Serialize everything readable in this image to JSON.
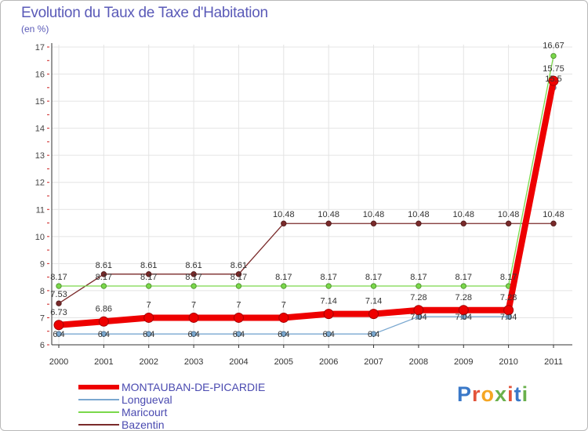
{
  "title": "Evolution du Taux de Taxe d'Habitation",
  "subtitle": "(en %)",
  "logo": {
    "text": "Proxiti",
    "colors": [
      "#3a78c8",
      "#e3533a",
      "#f5a623",
      "#6ab04c",
      "#e3533a",
      "#3a78c8",
      "#6ab04c"
    ]
  },
  "chart_data": {
    "type": "line",
    "title": "Evolution du Taux de Taxe d'Habitation",
    "ylabel": "(en %)",
    "xlabel": "",
    "ylim": [
      6,
      17
    ],
    "yticks": [
      6,
      7,
      8,
      9,
      10,
      11,
      12,
      13,
      14,
      15,
      16,
      17
    ],
    "categories": [
      "2000",
      "2001",
      "2002",
      "2003",
      "2004",
      "2005",
      "2006",
      "2007",
      "2008",
      "2009",
      "2010",
      "2011"
    ],
    "grid": true,
    "series": [
      {
        "name": "Bazentin",
        "color": "#7a2a2a",
        "values": [
          7.53,
          8.61,
          8.61,
          8.61,
          8.61,
          10.48,
          10.48,
          10.48,
          10.48,
          10.48,
          10.48,
          10.48
        ],
        "labels": [
          "7.53",
          "8.61",
          "8.61",
          "8.61",
          "8.61",
          "10.48",
          "10.48",
          "10.48",
          "10.48",
          "10.48",
          "10.48",
          "10.48"
        ]
      },
      {
        "name": "Maricourt",
        "color": "#7ad84a",
        "values": [
          8.17,
          8.17,
          8.17,
          8.17,
          8.17,
          8.17,
          8.17,
          8.17,
          8.17,
          8.17,
          8.17,
          16.67
        ],
        "labels": [
          "8.17",
          "8.17",
          "8.17",
          "8.17",
          "8.17",
          "8.17",
          "8.17",
          "8.17",
          "8.17",
          "8.17",
          "8.17",
          "16.67"
        ]
      },
      {
        "name": "Longueval",
        "color": "#7aa8d0",
        "values": [
          6.4,
          6.4,
          6.4,
          6.4,
          6.4,
          6.4,
          6.4,
          6.4,
          7.04,
          7.04,
          7.04,
          15.5
        ],
        "labels": [
          "6.4",
          "6.4",
          "6.4",
          "6.4",
          "6.4",
          "6.4",
          "6.4",
          "6.4",
          "7.04",
          "7.04",
          "7.04",
          "15.5"
        ]
      },
      {
        "name": "MONTAUBAN-DE-PICARDIE",
        "color": "#ee0000",
        "values": [
          6.73,
          6.86,
          7,
          7,
          7,
          7,
          7.14,
          7.14,
          7.28,
          7.28,
          7.28,
          15.75
        ],
        "labels": [
          "6.73",
          "6.86",
          "7",
          "7",
          "7",
          "7",
          "7.14",
          "7.14",
          "7.28",
          "7.28",
          "7.28",
          "15.75"
        ]
      }
    ],
    "legend": [
      "MONTAUBAN-DE-PICARDIE",
      "Longueval",
      "Maricourt",
      "Bazentin"
    ],
    "legend_position": "bottom-left"
  }
}
